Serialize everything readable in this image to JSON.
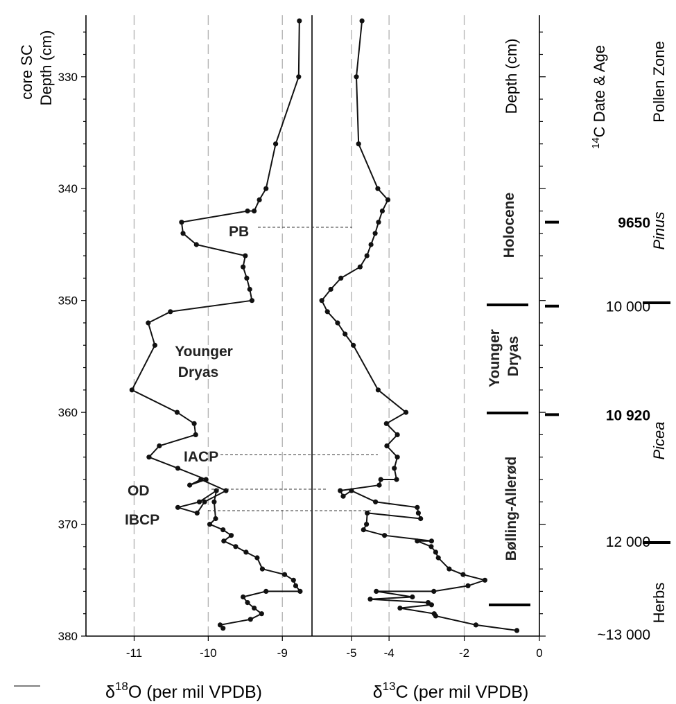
{
  "chart_data": [
    {
      "type": "line",
      "xlabel": "δ18O (per mil VPDB)",
      "xlabel_parts": {
        "pre": "δ",
        "sup": "18",
        "post": "O (per mil VPDB)"
      },
      "ylabel_line1": "core SC",
      "ylabel_line2": "Depth (cm)",
      "xlim": [
        -11.65,
        -8.6
      ],
      "ylim": [
        380,
        324.5
      ],
      "x_ticks": [
        -11,
        -10,
        -9
      ],
      "x_tick_labels": [
        "-11",
        "-10",
        "-9"
      ],
      "y_ticks": [
        330,
        340,
        350,
        360,
        370,
        380
      ],
      "y_tick_labels": [
        "330",
        "340",
        "350",
        "360",
        "370",
        "380"
      ],
      "grid": "vertical dashed",
      "points": [
        [
          -8.77,
          325
        ],
        [
          -8.78,
          330
        ],
        [
          -9.09,
          336
        ],
        [
          -9.22,
          340
        ],
        [
          -9.31,
          341
        ],
        [
          -9.38,
          342
        ],
        [
          -9.47,
          342
        ],
        [
          -10.36,
          343
        ],
        [
          -10.34,
          344
        ],
        [
          -10.16,
          345
        ],
        [
          -9.5,
          346
        ],
        [
          -9.53,
          347
        ],
        [
          -9.48,
          348
        ],
        [
          -9.44,
          349
        ],
        [
          -9.41,
          350
        ],
        [
          -10.51,
          351
        ],
        [
          -10.81,
          352
        ],
        [
          -10.72,
          354
        ],
        [
          -11.03,
          358
        ],
        [
          -10.42,
          360
        ],
        [
          -10.19,
          361
        ],
        [
          -10.17,
          362
        ],
        [
          -10.66,
          363
        ],
        [
          -10.8,
          364
        ],
        [
          -10.41,
          365
        ],
        [
          -10.03,
          366
        ],
        [
          -10.25,
          366.5
        ],
        [
          -10.1,
          366
        ],
        [
          -9.76,
          367
        ],
        [
          -10.05,
          368
        ],
        [
          -10.15,
          369
        ],
        [
          -10.41,
          368.5
        ],
        [
          -10.12,
          368
        ],
        [
          -9.89,
          367
        ],
        [
          -9.92,
          368
        ],
        [
          -9.9,
          369.5
        ],
        [
          -9.98,
          370
        ],
        [
          -9.8,
          370.5
        ],
        [
          -9.69,
          371
        ],
        [
          -9.79,
          371.5
        ],
        [
          -9.63,
          372
        ],
        [
          -9.49,
          372.5
        ],
        [
          -9.34,
          373
        ],
        [
          -9.27,
          374
        ],
        [
          -8.97,
          374.5
        ],
        [
          -8.85,
          375
        ],
        [
          -8.82,
          375.5
        ],
        [
          -8.76,
          376
        ],
        [
          -9.22,
          376
        ],
        [
          -9.53,
          376.5
        ],
        [
          -9.47,
          377
        ],
        [
          -9.38,
          377.5
        ],
        [
          -9.28,
          378
        ],
        [
          -9.43,
          378.5
        ],
        [
          -9.84,
          379
        ],
        [
          -9.8,
          379.3
        ]
      ]
    },
    {
      "type": "line",
      "xlabel": "δ13C (per mil VPDB)",
      "xlabel_parts": {
        "pre": "δ",
        "sup": "13",
        "post": "C (per mil VPDB)"
      },
      "ylabel": "Depth (cm)",
      "xlim": [
        -6.05,
        0
      ],
      "ylim": [
        380,
        324.5
      ],
      "x_ticks": [
        -5,
        -4,
        -2,
        0
      ],
      "x_tick_labels": [
        "-5",
        "-4",
        "-2",
        "0"
      ],
      "grid": "vertical dashed",
      "points": [
        [
          -4.72,
          325
        ],
        [
          -4.87,
          330
        ],
        [
          -4.81,
          336
        ],
        [
          -4.3,
          340
        ],
        [
          -4.03,
          341
        ],
        [
          -4.18,
          342
        ],
        [
          -4.28,
          343
        ],
        [
          -4.37,
          344
        ],
        [
          -4.48,
          345
        ],
        [
          -4.59,
          346
        ],
        [
          -4.77,
          347
        ],
        [
          -5.28,
          348
        ],
        [
          -5.55,
          349
        ],
        [
          -5.79,
          350
        ],
        [
          -5.64,
          351
        ],
        [
          -5.37,
          352
        ],
        [
          -5.17,
          353
        ],
        [
          -4.95,
          354
        ],
        [
          -4.29,
          358
        ],
        [
          -3.55,
          360
        ],
        [
          -4.07,
          361
        ],
        [
          -3.78,
          362
        ],
        [
          -4.06,
          363
        ],
        [
          -3.78,
          364
        ],
        [
          -3.86,
          365
        ],
        [
          -3.8,
          366
        ],
        [
          -4.22,
          366
        ],
        [
          -4.26,
          366.5
        ],
        [
          -5.3,
          367
        ],
        [
          -5.22,
          367.5
        ],
        [
          -5.0,
          367
        ],
        [
          -4.36,
          368
        ],
        [
          -3.25,
          368.5
        ],
        [
          -3.22,
          369
        ],
        [
          -3.16,
          369.5
        ],
        [
          -4.58,
          369
        ],
        [
          -4.6,
          370
        ],
        [
          -4.68,
          370.5
        ],
        [
          -4.12,
          371
        ],
        [
          -2.87,
          371.5
        ],
        [
          -3.25,
          371.5
        ],
        [
          -2.88,
          372
        ],
        [
          -2.76,
          372.5
        ],
        [
          -2.69,
          373
        ],
        [
          -2.4,
          374
        ],
        [
          -2.03,
          374.5
        ],
        [
          -1.45,
          375
        ],
        [
          -1.9,
          375.5
        ],
        [
          -2.81,
          376
        ],
        [
          -4.34,
          376
        ],
        [
          -3.38,
          376.5
        ],
        [
          -4.5,
          376.7
        ],
        [
          -2.96,
          377
        ],
        [
          -2.87,
          377.2
        ],
        [
          -3.71,
          377.5
        ],
        [
          -2.8,
          378
        ],
        [
          -2.76,
          378.2
        ],
        [
          -1.69,
          379
        ],
        [
          -0.6,
          379.5
        ]
      ]
    }
  ],
  "annotations": {
    "PB": "PB",
    "younger_dryas_line1": "Younger",
    "younger_dryas_line2": "Dryas",
    "IACP": "IACP",
    "OD": "OD",
    "IBCP": "IBCP"
  },
  "chronozones": {
    "holocene": "Holocene",
    "younger_dryas_line1": "Younger",
    "younger_dryas_line2": "Dryas",
    "bolling_allerod": "Bølling-Allerød"
  },
  "ages": {
    "header_pre": "",
    "header_sup": "14",
    "header_post": "C Date & Age",
    "items": [
      {
        "label": "9650",
        "depth": 343,
        "bold": true,
        "marker": true
      },
      {
        "label": "10 000",
        "depth": 350.5,
        "bold": false,
        "marker": true
      },
      {
        "label": "10 920",
        "depth": 360.2,
        "bold": true,
        "marker": true
      },
      {
        "label": "12 000",
        "depth": 371.5,
        "bold": false,
        "marker": false
      },
      {
        "label": "~13 000",
        "depth": 379.8,
        "bold": false,
        "marker": false
      }
    ]
  },
  "pollen_zones": {
    "header": "Pollen Zone",
    "items": [
      {
        "label": "Pinus",
        "italic": true
      },
      {
        "label": "Picea",
        "italic": true
      },
      {
        "label": "Herbs",
        "italic": false
      }
    ]
  },
  "colors": {
    "line": "#111111",
    "grid": "#b5b5b5",
    "label": "#222222"
  }
}
